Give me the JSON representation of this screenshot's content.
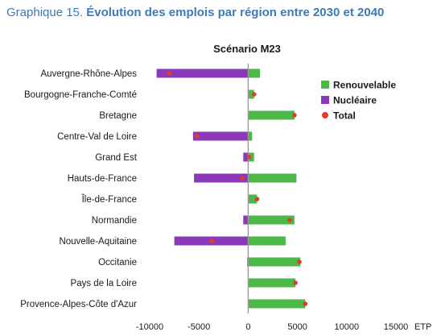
{
  "heading": {
    "prefix": "Graphique 15.",
    "title": "Évolution des emplois par région entre 2030 et 2040"
  },
  "colors": {
    "heading": "#3d7ab8",
    "renouvelable": "#4cb848",
    "nucleaire": "#8a3ab9",
    "total": "#e8392b",
    "axis": "#9a9a9a"
  },
  "chart_data": {
    "type": "bar",
    "orientation": "horizontal",
    "stacked": true,
    "title": "Scénario M23",
    "xlabel": "",
    "x_unit": "ETP",
    "xlim": [
      -10000,
      15000
    ],
    "x_ticks": [
      -10000,
      -5000,
      0,
      5000,
      10000,
      15000
    ],
    "x_tick_labels": [
      "-10000",
      "-5000",
      "0",
      "5000",
      "10000",
      "15000"
    ],
    "grid": false,
    "legend_position": "top-right",
    "categories": [
      "Auvergne-Rhône-Alpes",
      "Bourgogne-Franche-Comté",
      "Bretagne",
      "Centre-Val de Loire",
      "Grand Est",
      "Hauts-de-France",
      "Île-de-France",
      "Normandie",
      "Nouvelle-Aquitaine",
      "Occitanie",
      "Pays de la Loire",
      "Provence-Alpes-Côte d'Azur"
    ],
    "series": [
      {
        "name": "Renouvelable",
        "type": "bar",
        "color": "#4cb848",
        "values": [
          1200,
          600,
          4700,
          400,
          600,
          4900,
          900,
          4700,
          3800,
          5300,
          4800,
          5800
        ]
      },
      {
        "name": "Nucléaire",
        "type": "bar",
        "color": "#8a3ab9",
        "values": [
          -9300,
          0,
          0,
          -5600,
          -500,
          -5500,
          0,
          -500,
          -7500,
          -100,
          0,
          0
        ]
      },
      {
        "name": "Total",
        "type": "point",
        "color": "#e8392b",
        "values": [
          -8000,
          600,
          4700,
          -5200,
          100,
          -600,
          900,
          4200,
          -3700,
          5200,
          4800,
          5800
        ]
      }
    ]
  }
}
